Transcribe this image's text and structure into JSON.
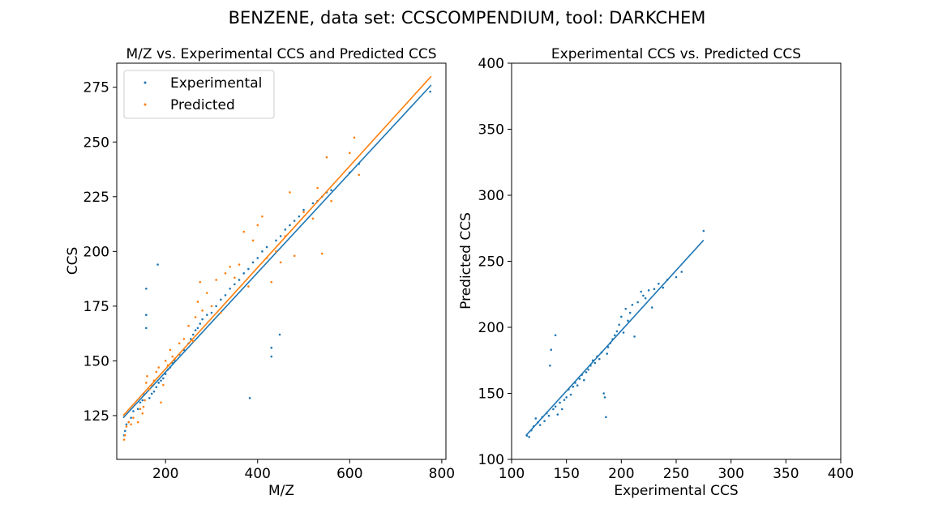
{
  "suptitle": "BENZENE, data set: CCSCOMPENDIUM, tool: DARKCHEM",
  "colors": {
    "experimental": "#1f77b4",
    "predicted": "#ff7f0e",
    "axis": "#000000"
  },
  "chart_data": [
    {
      "type": "scatter",
      "title": "M/Z vs. Experimental CCS and Predicted CCS",
      "xlabel": "M/Z",
      "ylabel": "CCS",
      "xlim": [
        94,
        809
      ],
      "ylim": [
        105,
        286
      ],
      "xticks": [
        200,
        400,
        600,
        800
      ],
      "yticks": [
        125,
        150,
        175,
        200,
        225,
        250,
        275
      ],
      "legend": {
        "placement": "top-left",
        "entries": [
          "Experimental",
          "Predicted"
        ]
      },
      "series": [
        {
          "name": "Experimental",
          "color": "#1f77b4",
          "fit_line": [
            [
              108,
              124
            ],
            [
              777,
              276
            ]
          ],
          "points": [
            [
              110,
              116
            ],
            [
              112,
              118
            ],
            [
              115,
              121
            ],
            [
              120,
              122
            ],
            [
              125,
              124
            ],
            [
              130,
              127
            ],
            [
              140,
              128
            ],
            [
              145,
              131
            ],
            [
              150,
              132
            ],
            [
              152,
              135
            ],
            [
              158,
              171
            ],
            [
              158,
              165
            ],
            [
              158,
              183
            ],
            [
              165,
              133
            ],
            [
              170,
              135
            ],
            [
              175,
              136
            ],
            [
              180,
              138
            ],
            [
              183,
              194
            ],
            [
              185,
              140
            ],
            [
              190,
              141
            ],
            [
              195,
              142
            ],
            [
              200,
              144
            ],
            [
              205,
              146
            ],
            [
              210,
              147
            ],
            [
              215,
              149
            ],
            [
              220,
              150
            ],
            [
              230,
              153
            ],
            [
              240,
              155
            ],
            [
              250,
              158
            ],
            [
              255,
              160
            ],
            [
              260,
              162
            ],
            [
              265,
              164
            ],
            [
              270,
              165
            ],
            [
              275,
              167
            ],
            [
              280,
              169
            ],
            [
              290,
              171
            ],
            [
              300,
              172
            ],
            [
              310,
              175
            ],
            [
              320,
              178
            ],
            [
              330,
              180
            ],
            [
              340,
              183
            ],
            [
              350,
              185
            ],
            [
              360,
              187
            ],
            [
              370,
              190
            ],
            [
              380,
              192
            ],
            [
              383,
              133
            ],
            [
              390,
              195
            ],
            [
              400,
              197
            ],
            [
              410,
              200
            ],
            [
              420,
              202
            ],
            [
              430,
              152
            ],
            [
              430,
              156
            ],
            [
              440,
              205
            ],
            [
              448,
              162
            ],
            [
              450,
              207
            ],
            [
              460,
              210
            ],
            [
              470,
              212
            ],
            [
              480,
              214
            ],
            [
              490,
              216
            ],
            [
              500,
              219
            ],
            [
              520,
              222
            ],
            [
              530,
              223
            ],
            [
              540,
              225
            ],
            [
              550,
              227
            ],
            [
              560,
              228
            ],
            [
              600,
              236
            ],
            [
              620,
              240
            ],
            [
              775,
              273
            ]
          ]
        },
        {
          "name": "Predicted",
          "color": "#ff7f0e",
          "fit_line": [
            [
              108,
              125
            ],
            [
              777,
              280
            ]
          ],
          "points": [
            [
              110,
              114
            ],
            [
              112,
              116
            ],
            [
              115,
              120
            ],
            [
              120,
              122
            ],
            [
              125,
              121
            ],
            [
              130,
              124
            ],
            [
              140,
              122
            ],
            [
              145,
              128
            ],
            [
              150,
              126
            ],
            [
              152,
              129
            ],
            [
              155,
              132
            ],
            [
              158,
              140
            ],
            [
              160,
              143
            ],
            [
              165,
              137
            ],
            [
              170,
              139
            ],
            [
              175,
              141
            ],
            [
              180,
              145
            ],
            [
              185,
              147
            ],
            [
              190,
              131
            ],
            [
              195,
              139
            ],
            [
              200,
              150
            ],
            [
              205,
              148
            ],
            [
              210,
              155
            ],
            [
              215,
              152
            ],
            [
              220,
              151
            ],
            [
              230,
              158
            ],
            [
              240,
              160
            ],
            [
              250,
              166
            ],
            [
              260,
              159
            ],
            [
              265,
              170
            ],
            [
              270,
              177
            ],
            [
              275,
              186
            ],
            [
              280,
              173
            ],
            [
              290,
              181
            ],
            [
              300,
              175
            ],
            [
              310,
              187
            ],
            [
              320,
              172
            ],
            [
              330,
              190
            ],
            [
              340,
              193
            ],
            [
              350,
              188
            ],
            [
              360,
              194
            ],
            [
              370,
              209
            ],
            [
              380,
              184
            ],
            [
              390,
              205
            ],
            [
              400,
              212
            ],
            [
              410,
              216
            ],
            [
              420,
              197
            ],
            [
              430,
              186
            ],
            [
              440,
              200
            ],
            [
              450,
              195
            ],
            [
              460,
              207
            ],
            [
              470,
              227
            ],
            [
              480,
              198
            ],
            [
              500,
              218
            ],
            [
              520,
              215
            ],
            [
              530,
              229
            ],
            [
              540,
              199
            ],
            [
              550,
              243
            ],
            [
              560,
              223
            ],
            [
              600,
              245
            ],
            [
              610,
              252
            ],
            [
              620,
              235
            ]
          ]
        }
      ]
    },
    {
      "type": "scatter",
      "title": "Experimental CCS vs. Predicted CCS",
      "xlabel": "Experimental CCS",
      "ylabel": "Predicted CCS",
      "xlim": [
        100,
        400
      ],
      "ylim": [
        100,
        400
      ],
      "xticks": [
        100,
        150,
        200,
        250,
        300,
        350,
        400
      ],
      "yticks": [
        100,
        150,
        200,
        250,
        300,
        350,
        400
      ],
      "series": [
        {
          "color": "#1f77b4",
          "fit_line": [
            [
              113,
              118
            ],
            [
              275,
              266
            ]
          ],
          "points": [
            [
              114,
              118
            ],
            [
              116,
              117
            ],
            [
              118,
              122
            ],
            [
              120,
              125
            ],
            [
              122,
              131
            ],
            [
              124,
              128
            ],
            [
              126,
              126
            ],
            [
              128,
              132
            ],
            [
              130,
              129
            ],
            [
              132,
              135
            ],
            [
              134,
              133
            ],
            [
              135,
              171
            ],
            [
              136,
              183
            ],
            [
              138,
              138
            ],
            [
              140,
              194
            ],
            [
              140,
              140
            ],
            [
              142,
              134
            ],
            [
              144,
              143
            ],
            [
              146,
              138
            ],
            [
              148,
              145
            ],
            [
              150,
              147
            ],
            [
              152,
              153
            ],
            [
              154,
              149
            ],
            [
              156,
              155
            ],
            [
              158,
              158
            ],
            [
              160,
              156
            ],
            [
              162,
              161
            ],
            [
              164,
              164
            ],
            [
              166,
              160
            ],
            [
              168,
              166
            ],
            [
              170,
              168
            ],
            [
              172,
              171
            ],
            [
              174,
              175
            ],
            [
              176,
              173
            ],
            [
              178,
              178
            ],
            [
              180,
              176
            ],
            [
              182,
              181
            ],
            [
              184,
              150
            ],
            [
              185,
              147
            ],
            [
              186,
              132
            ],
            [
              187,
              180
            ],
            [
              188,
              185
            ],
            [
              190,
              188
            ],
            [
              192,
              191
            ],
            [
              194,
              194
            ],
            [
              196,
              197
            ],
            [
              198,
              202
            ],
            [
              200,
              208
            ],
            [
              202,
              196
            ],
            [
              204,
              214
            ],
            [
              206,
              205
            ],
            [
              208,
              211
            ],
            [
              210,
              217
            ],
            [
              212,
              193
            ],
            [
              215,
              219
            ],
            [
              218,
              227
            ],
            [
              220,
              224
            ],
            [
              222,
              222
            ],
            [
              225,
              228
            ],
            [
              228,
              215
            ],
            [
              230,
              229
            ],
            [
              234,
              233
            ],
            [
              238,
              230
            ],
            [
              242,
              236
            ],
            [
              250,
              238
            ],
            [
              255,
              242
            ],
            [
              275,
              273
            ]
          ]
        }
      ]
    }
  ]
}
